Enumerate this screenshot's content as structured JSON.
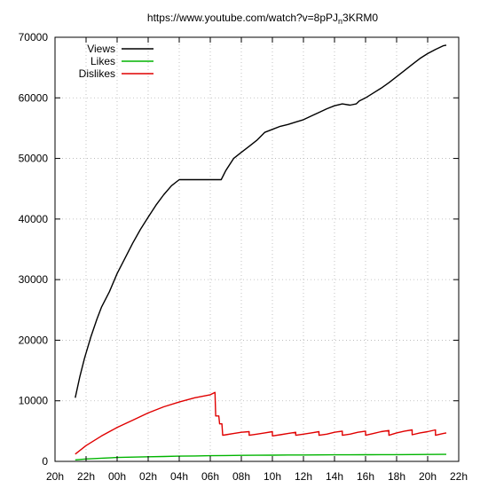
{
  "chart_data": {
    "type": "line",
    "title": "https://www.youtube.com/watch?v=8pPJ",
    "title_sub": "n",
    "title_tail": "3KRM0",
    "xlabel": "",
    "ylabel": "",
    "x_ticks": [
      {
        "hour": 20,
        "label": "20h"
      },
      {
        "hour": 22,
        "label": "22h"
      },
      {
        "hour": 24,
        "label": "00h"
      },
      {
        "hour": 26,
        "label": "02h"
      },
      {
        "hour": 28,
        "label": "04h"
      },
      {
        "hour": 30,
        "label": "06h"
      },
      {
        "hour": 32,
        "label": "08h"
      },
      {
        "hour": 34,
        "label": "10h"
      },
      {
        "hour": 36,
        "label": "12h"
      },
      {
        "hour": 38,
        "label": "14h"
      },
      {
        "hour": 40,
        "label": "16h"
      },
      {
        "hour": 42,
        "label": "18h"
      },
      {
        "hour": 44,
        "label": "20h"
      },
      {
        "hour": 46,
        "label": "22h"
      }
    ],
    "y_ticks": [
      0,
      10000,
      20000,
      30000,
      40000,
      50000,
      60000,
      70000
    ],
    "xlim": [
      20,
      46
    ],
    "ylim": [
      0,
      70000
    ],
    "grid": true,
    "legend": "top-left",
    "series": [
      {
        "name": "Views",
        "color": "#000000",
        "x": [
          21.3,
          21.6,
          21.9,
          22.3,
          22.7,
          23.0,
          23.5,
          24.0,
          24.5,
          25.0,
          25.5,
          26.0,
          26.5,
          27.0,
          27.5,
          28.0,
          28.5,
          28.9,
          29.3,
          29.8,
          30.3,
          30.7,
          31.0,
          31.5,
          32.0,
          32.5,
          33.0,
          33.5,
          34.0,
          34.5,
          35.0,
          35.5,
          36.0,
          36.5,
          37.0,
          37.5,
          38.0,
          38.5,
          39.0,
          39.4,
          39.6,
          40.0,
          40.5,
          41.0,
          41.5,
          42.0,
          42.5,
          43.0,
          43.5,
          44.0,
          44.5,
          45.0,
          45.2
        ],
        "values": [
          10500,
          14000,
          17000,
          20500,
          23500,
          25500,
          28000,
          31000,
          33500,
          36000,
          38300,
          40300,
          42300,
          44000,
          45500,
          46500,
          46500,
          46500,
          46500,
          46500,
          46500,
          46500,
          48000,
          50000,
          51000,
          52000,
          53000,
          54300,
          54800,
          55300,
          55600,
          56000,
          56400,
          57000,
          57600,
          58200,
          58700,
          59000,
          58800,
          59000,
          59500,
          60000,
          60800,
          61600,
          62500,
          63500,
          64500,
          65500,
          66500,
          67300,
          68000,
          68600,
          68700
        ]
      },
      {
        "name": "Likes",
        "color": "#00b400",
        "x": [
          21.3,
          22.0,
          23.0,
          24.0,
          25.0,
          26.0,
          27.0,
          28.0,
          29.0,
          30.0,
          31.0,
          32.0,
          33.0,
          34.0,
          35.0,
          36.0,
          37.0,
          38.0,
          39.0,
          40.0,
          41.0,
          42.0,
          43.0,
          44.0,
          45.0,
          45.2
        ],
        "values": [
          250,
          400,
          530,
          640,
          700,
          760,
          810,
          860,
          900,
          930,
          960,
          990,
          1010,
          1030,
          1050,
          1060,
          1070,
          1080,
          1090,
          1100,
          1110,
          1120,
          1130,
          1140,
          1150,
          1150
        ]
      },
      {
        "name": "Dislikes",
        "color": "#e00000",
        "x": [
          21.3,
          22.0,
          23.0,
          24.0,
          25.0,
          26.0,
          27.0,
          28.0,
          29.0,
          30.0,
          30.3,
          30.35,
          30.55,
          30.6,
          30.75,
          30.8,
          31.0,
          31.5,
          32.0,
          32.5,
          32.5,
          33.0,
          33.5,
          34.0,
          34.0,
          34.5,
          35.0,
          35.5,
          35.5,
          36.0,
          36.5,
          37.0,
          37.0,
          37.5,
          38.0,
          38.5,
          38.5,
          39.0,
          39.5,
          40.0,
          40.0,
          40.5,
          41.0,
          41.5,
          41.5,
          42.0,
          42.5,
          43.0,
          43.0,
          43.5,
          44.0,
          44.5,
          44.5,
          45.0,
          45.2
        ],
        "values": [
          1200,
          2600,
          4200,
          5600,
          6800,
          8000,
          9000,
          9800,
          10500,
          11000,
          11400,
          7500,
          7500,
          6200,
          6200,
          4300,
          4400,
          4600,
          4800,
          4900,
          4300,
          4500,
          4700,
          4900,
          4200,
          4400,
          4600,
          4800,
          4300,
          4500,
          4700,
          4900,
          4300,
          4500,
          4800,
          5000,
          4300,
          4500,
          4800,
          5000,
          4300,
          4600,
          4900,
          5100,
          4300,
          4700,
          5000,
          5200,
          4400,
          4700,
          4900,
          5200,
          4300,
          4600,
          4700
        ]
      }
    ]
  }
}
